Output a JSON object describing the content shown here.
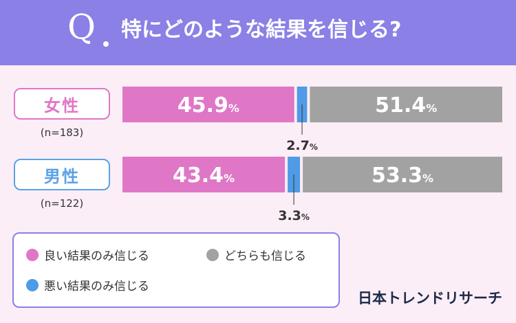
{
  "header": {
    "q_letter": "Q",
    "question": "特にどのような結果を信じる?"
  },
  "chart_data": {
    "type": "bar",
    "stacked": true,
    "orientation": "horizontal",
    "unit": "%",
    "categories": [
      "女性",
      "男性"
    ],
    "sample_sizes": [
      "(n=183)",
      "(n=122)"
    ],
    "series": [
      {
        "name": "良い結果のみ信じる",
        "color": "#e076c6",
        "values": [
          45.9,
          43.4
        ]
      },
      {
        "name": "悪い結果のみ信じる",
        "color": "#4f9be6",
        "values": [
          2.7,
          3.3
        ]
      },
      {
        "name": "どちらも信じる",
        "color": "#a2a2a2",
        "values": [
          51.4,
          53.3
        ]
      }
    ],
    "legend_placement": "bottom-left",
    "grid": false
  },
  "brand": "日本トレンドリサーチ"
}
